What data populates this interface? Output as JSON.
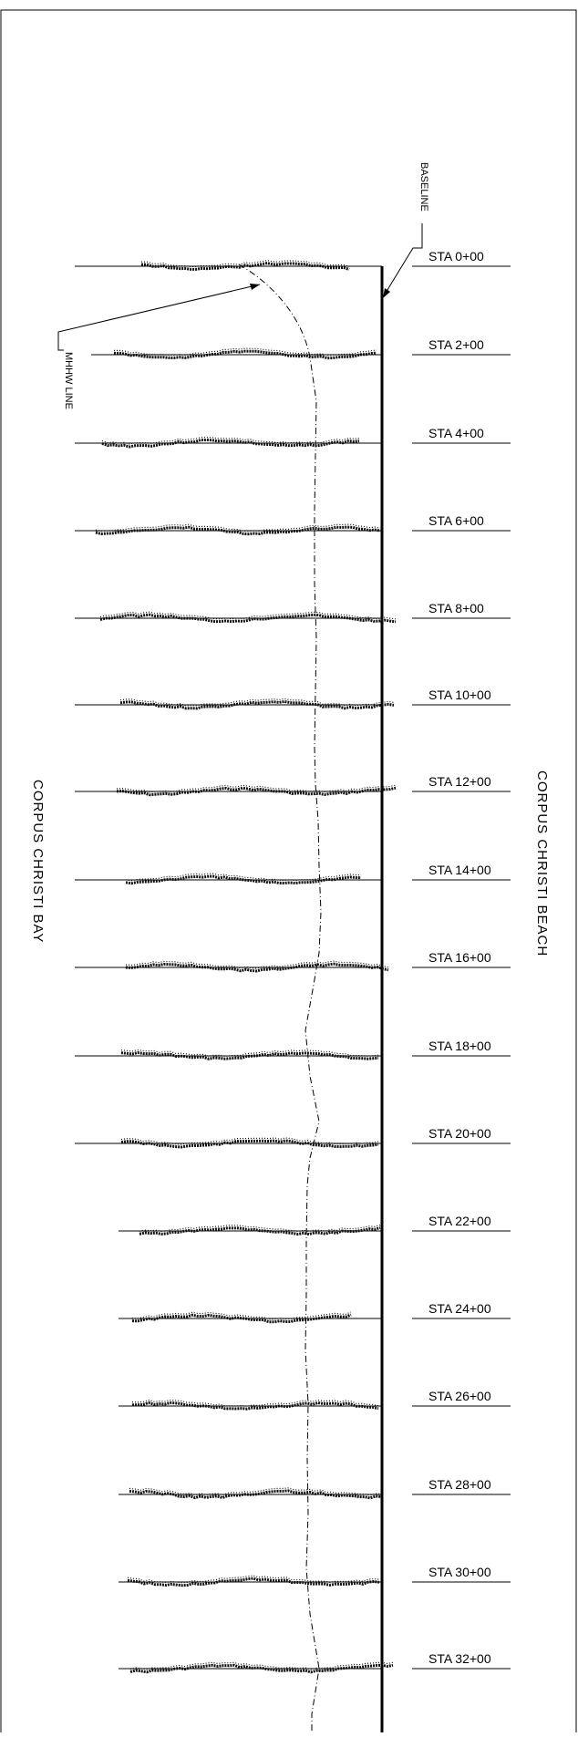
{
  "labels": {
    "baseline": "BASELINE",
    "mhhw": "MHHW LINE",
    "bay": "CORPUS CHRISTI BAY",
    "beach": "CORPUS CHRISTI BEACH"
  },
  "stations": [
    "STA 0+00",
    "STA 2+00",
    "STA 4+00",
    "STA 6+00",
    "STA 8+00",
    "STA 10+00",
    "STA 12+00",
    "STA 14+00",
    "STA 16+00",
    "STA 18+00",
    "STA 20+00",
    "STA 22+00",
    "STA 24+00",
    "STA 26+00",
    "STA 28+00",
    "STA 30+00",
    "STA 32+00"
  ]
}
